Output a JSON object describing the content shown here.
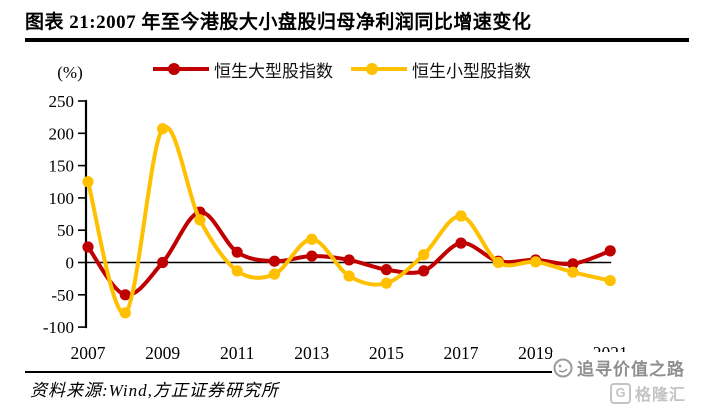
{
  "header": {
    "title": "图表 21:2007 年至今港股大小盘股归母净利润同比增速变化"
  },
  "chart_data": {
    "type": "line",
    "smooth": true,
    "unit_label": "(%)",
    "x": [
      2007,
      2008,
      2009,
      2010,
      2011,
      2012,
      2013,
      2014,
      2015,
      2016,
      2017,
      2018,
      2019,
      2020,
      2021
    ],
    "x_tick_labels": [
      "2007",
      "2009",
      "2011",
      "2013",
      "2015",
      "2017",
      "2019",
      "2021"
    ],
    "y_ticks": [
      250,
      200,
      150,
      100,
      50,
      0,
      -50,
      -100
    ],
    "ylim": [
      -100,
      250
    ],
    "legend_position": "top",
    "grid": false,
    "series": [
      {
        "name": "恒生大型股指数",
        "color": "#C00000",
        "values": [
          24,
          -50,
          0,
          78,
          16,
          2,
          10,
          4,
          -11,
          -13,
          30,
          2,
          4,
          -2,
          18
        ]
      },
      {
        "name": "恒生小型股指数",
        "color": "#FFC000",
        "values": [
          125,
          -78,
          207,
          66,
          -13,
          -18,
          36,
          -21,
          -32,
          12,
          72,
          0,
          1,
          -15,
          -28
        ]
      }
    ],
    "axis_color": "#000000"
  },
  "footer": {
    "source": "资料来源:Wind,方正证券研究所"
  },
  "watermark": {
    "slogan": "追寻价值之路",
    "logo_letter": "G",
    "logo_text": "格隆汇"
  }
}
